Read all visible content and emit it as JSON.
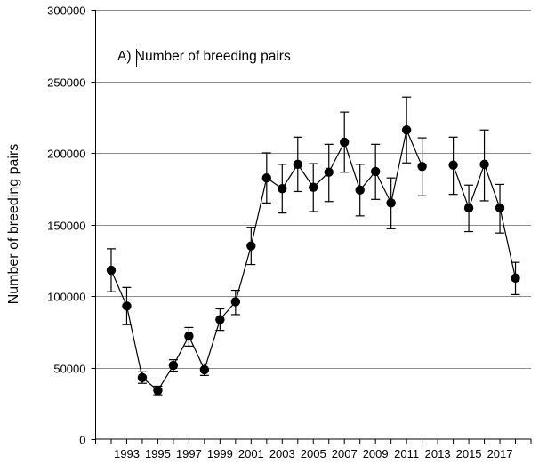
{
  "chart_data": {
    "type": "line",
    "title": "A) Number of breeding pairs",
    "ylabel": "Number of breeding pairs",
    "xlabel": "",
    "ylim": [
      0,
      300000
    ],
    "xlim": [
      1991,
      2019
    ],
    "y_ticks": [
      0,
      50000,
      100000,
      150000,
      200000,
      250000,
      300000
    ],
    "y_tick_labels": [
      "0",
      "50000",
      "100000",
      "150000",
      "200000",
      "250000",
      "300000"
    ],
    "x_tick_labels": [
      "1993",
      "1995",
      "1997",
      "1999",
      "2001",
      "2003",
      "2005",
      "2007",
      "2009",
      "2011",
      "2013",
      "2015",
      "2017"
    ],
    "x_tick_values": [
      1993,
      1995,
      1997,
      1999,
      2001,
      2003,
      2005,
      2007,
      2009,
      2011,
      2013,
      2015,
      2017
    ],
    "grid": "horizontal",
    "legend": "none",
    "marker_color": "#000000",
    "line_color": "#000000",
    "gridline_color": "#8c8c8c",
    "series": [
      {
        "segments": [
          [
            {
              "x": 1992,
              "y": 118000,
              "low": 103000,
              "high": 133000
            },
            {
              "x": 1993,
              "y": 93000,
              "low": 80000,
              "high": 106000
            },
            {
              "x": 1994,
              "y": 43000,
              "low": 39000,
              "high": 47000
            },
            {
              "x": 1995,
              "y": 34000,
              "low": 31000,
              "high": 37000
            },
            {
              "x": 1996,
              "y": 51500,
              "low": 47500,
              "high": 55500
            },
            {
              "x": 1997,
              "y": 72000,
              "low": 65000,
              "high": 78000
            },
            {
              "x": 1998,
              "y": 48500,
              "low": 44500,
              "high": 52500
            },
            {
              "x": 1999,
              "y": 83500,
              "low": 76000,
              "high": 91000
            },
            {
              "x": 2000,
              "y": 96000,
              "low": 87000,
              "high": 104000
            },
            {
              "x": 2001,
              "y": 135000,
              "low": 122000,
              "high": 148000
            },
            {
              "x": 2002,
              "y": 182500,
              "low": 165000,
              "high": 200000
            },
            {
              "x": 2003,
              "y": 175000,
              "low": 158000,
              "high": 192000
            },
            {
              "x": 2004,
              "y": 192000,
              "low": 173000,
              "high": 211000
            },
            {
              "x": 2005,
              "y": 176000,
              "low": 159000,
              "high": 192500
            },
            {
              "x": 2006,
              "y": 186500,
              "low": 166000,
              "high": 206000
            },
            {
              "x": 2007,
              "y": 207500,
              "low": 186500,
              "high": 228500
            },
            {
              "x": 2008,
              "y": 174000,
              "low": 156000,
              "high": 192000
            },
            {
              "x": 2009,
              "y": 187000,
              "low": 167500,
              "high": 206000
            },
            {
              "x": 2010,
              "y": 165000,
              "low": 147000,
              "high": 182500
            },
            {
              "x": 2011,
              "y": 216000,
              "low": 193000,
              "high": 239000
            },
            {
              "x": 2012,
              "y": 190500,
              "low": 170000,
              "high": 210500
            }
          ],
          [
            {
              "x": 2014,
              "y": 191500,
              "low": 171000,
              "high": 211000
            },
            {
              "x": 2015,
              "y": 161500,
              "low": 145000,
              "high": 177500
            },
            {
              "x": 2016,
              "y": 192000,
              "low": 166500,
              "high": 216000
            },
            {
              "x": 2017,
              "y": 161500,
              "low": 144000,
              "high": 178000
            },
            {
              "x": 2018,
              "y": 112500,
              "low": 101000,
              "high": 123500
            }
          ]
        ]
      }
    ]
  }
}
